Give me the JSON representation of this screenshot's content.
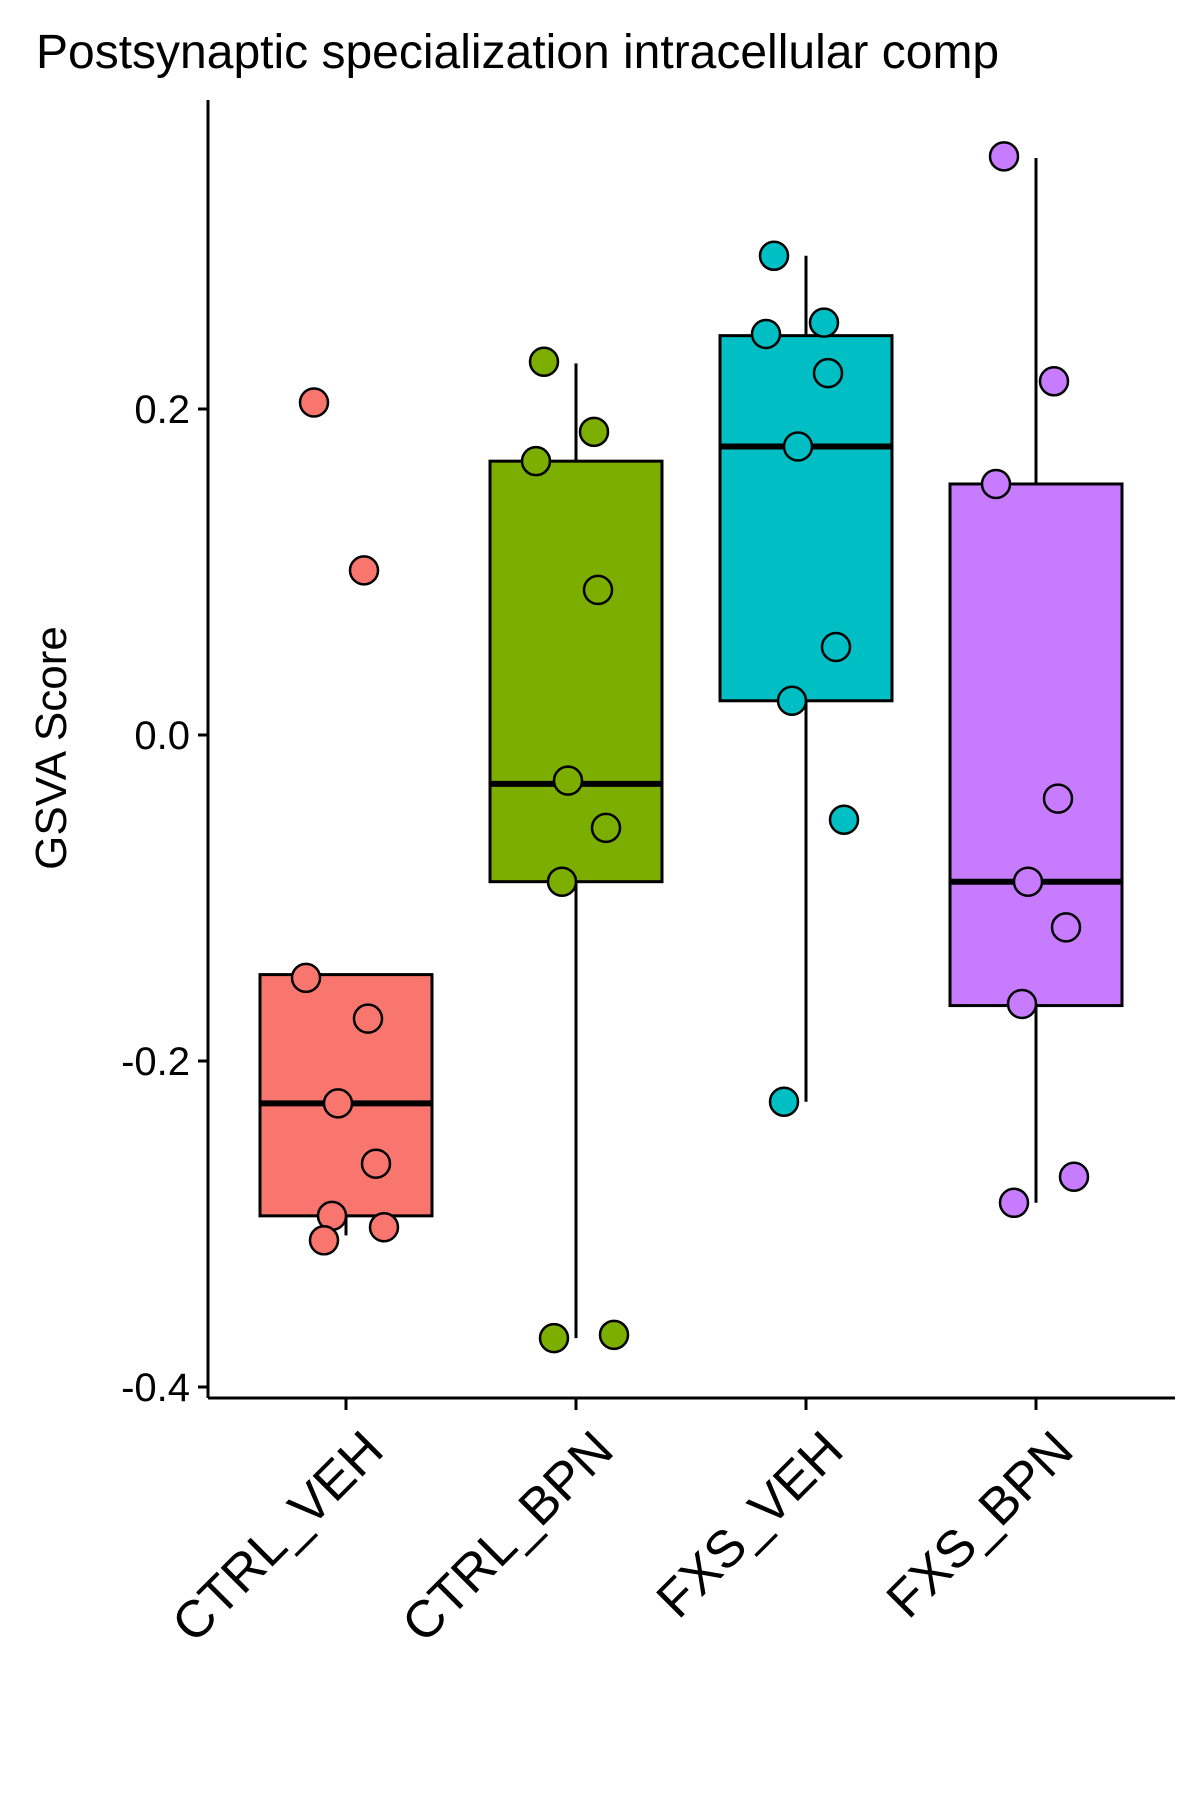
{
  "chart_data": {
    "type": "box",
    "title": "Postsynaptic specialization intracellular comp",
    "ylabel": "GSVA Score",
    "xlabel": "",
    "ylim": [
      -0.4,
      0.37
    ],
    "yticks": [
      "-0.4",
      "-0.2",
      "0.0",
      "0.2"
    ],
    "ytick_values": [
      -0.4,
      -0.2,
      0.0,
      0.2
    ],
    "grid": false,
    "categories": [
      "CTRL_VEH",
      "CTRL_BPN",
      "FXS_VEH",
      "FXS_BPN"
    ],
    "colors": [
      "#F8766D",
      "#7CAE00",
      "#00BFC4",
      "#C77CFF"
    ],
    "boxes": [
      {
        "name": "CTRL_VEH",
        "whisker_low": -0.307,
        "q1": -0.295,
        "median": -0.226,
        "q3": -0.147,
        "whisker_high": -0.147
      },
      {
        "name": "CTRL_BPN",
        "whisker_low": -0.37,
        "q1": -0.09,
        "median": -0.03,
        "q3": 0.168,
        "whisker_high": 0.228
      },
      {
        "name": "FXS_VEH",
        "whisker_low": -0.225,
        "q1": 0.021,
        "median": 0.177,
        "q3": 0.245,
        "whisker_high": 0.294
      },
      {
        "name": "FXS_BPN",
        "whisker_low": -0.287,
        "q1": -0.166,
        "median": -0.09,
        "q3": 0.154,
        "whisker_high": 0.354
      }
    ],
    "points": [
      {
        "group": "CTRL_VEH",
        "values": [
          0.204,
          0.101,
          -0.149,
          -0.174,
          -0.226,
          -0.263,
          -0.295,
          -0.302,
          -0.31
        ]
      },
      {
        "group": "CTRL_BPN",
        "values": [
          0.229,
          0.186,
          0.168,
          0.089,
          -0.028,
          -0.057,
          -0.09,
          -0.368,
          -0.37
        ]
      },
      {
        "group": "FXS_VEH",
        "values": [
          0.294,
          0.253,
          0.246,
          0.222,
          0.177,
          0.054,
          0.021,
          -0.052,
          -0.225
        ]
      },
      {
        "group": "FXS_BPN",
        "values": [
          0.355,
          0.217,
          0.154,
          -0.039,
          -0.09,
          -0.118,
          -0.165,
          -0.271,
          -0.287
        ]
      }
    ]
  }
}
